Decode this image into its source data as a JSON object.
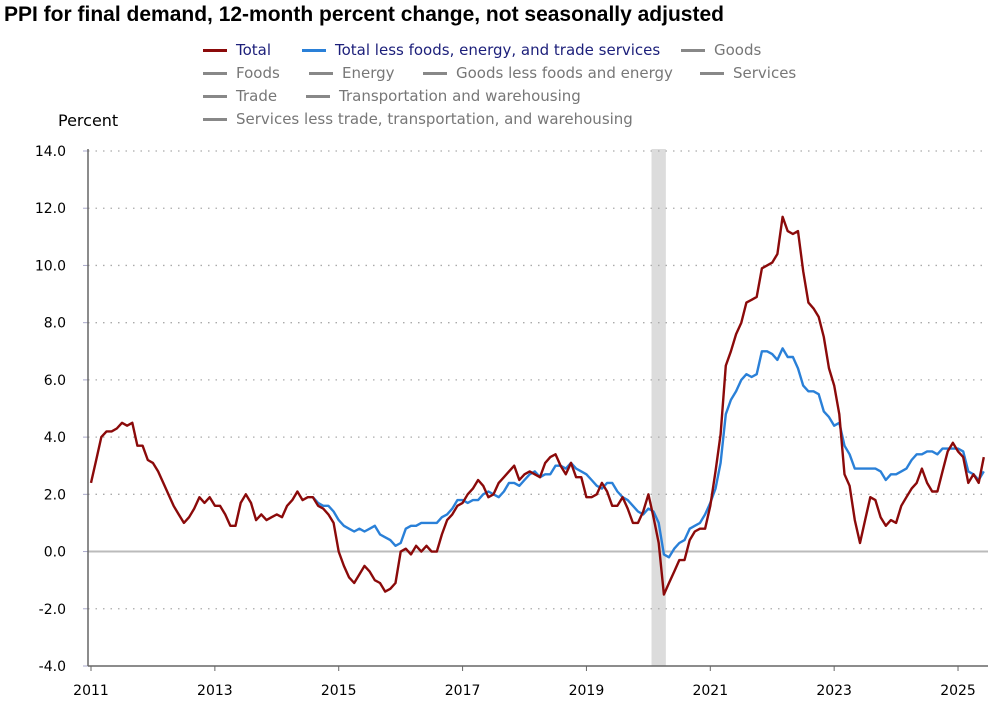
{
  "chart_data": {
    "type": "line",
    "title": "PPI for final demand, 12-month percent change, not seasonally adjusted",
    "ylabel": "Percent",
    "xlabel": "",
    "ylim": [
      -4.0,
      14.0
    ],
    "yticks": [
      "14.0",
      "12.0",
      "10.0",
      "8.0",
      "6.0",
      "4.0",
      "2.0",
      "0.0",
      "-2.0",
      "-4.0"
    ],
    "xticks": [
      "2011",
      "2013",
      "2015",
      "2017",
      "2019",
      "2021",
      "2023",
      "2025"
    ],
    "x_start": "2011-01",
    "x_end": "2025-06",
    "frequency": "monthly",
    "grid": "horizontal dotted",
    "shaded_period": [
      "2020-02",
      "2020-04"
    ],
    "legend": [
      {
        "label": "Total",
        "color": "#8b0a0a",
        "shown": true
      },
      {
        "label": "Total less foods, energy, and trade services",
        "color": "#2a80d8",
        "shown": true
      },
      {
        "label": "Goods",
        "color": "#888888",
        "shown": false
      },
      {
        "label": "Foods",
        "color": "#888888",
        "shown": false
      },
      {
        "label": "Energy",
        "color": "#888888",
        "shown": false
      },
      {
        "label": "Goods less foods and energy",
        "color": "#888888",
        "shown": false
      },
      {
        "label": "Services",
        "color": "#888888",
        "shown": false
      },
      {
        "label": "Trade",
        "color": "#888888",
        "shown": false
      },
      {
        "label": "Transportation and warehousing",
        "color": "#888888",
        "shown": false
      },
      {
        "label": "Services less trade, transportation, and warehousing",
        "color": "#888888",
        "shown": false
      }
    ],
    "series": [
      {
        "name": "Total",
        "color": "#8b0a0a",
        "start": "2011-01",
        "values": [
          2.4,
          3.2,
          4.0,
          4.2,
          4.2,
          4.3,
          4.5,
          4.4,
          4.5,
          3.7,
          3.7,
          3.2,
          3.1,
          2.8,
          2.4,
          2.0,
          1.6,
          1.3,
          1.0,
          1.2,
          1.5,
          1.9,
          1.7,
          1.9,
          1.6,
          1.6,
          1.3,
          0.9,
          0.9,
          1.7,
          2.0,
          1.7,
          1.1,
          1.3,
          1.1,
          1.2,
          1.3,
          1.2,
          1.6,
          1.8,
          2.1,
          1.8,
          1.9,
          1.9,
          1.6,
          1.5,
          1.3,
          1.0,
          0.0,
          -0.5,
          -0.9,
          -1.1,
          -0.8,
          -0.5,
          -0.7,
          -1.0,
          -1.1,
          -1.4,
          -1.3,
          -1.1,
          0.0,
          0.1,
          -0.1,
          0.2,
          0.0,
          0.2,
          0.0,
          0.0,
          0.6,
          1.1,
          1.3,
          1.6,
          1.7,
          2.0,
          2.2,
          2.5,
          2.3,
          1.9,
          2.0,
          2.4,
          2.6,
          2.8,
          3.0,
          2.5,
          2.7,
          2.8,
          2.7,
          2.6,
          3.1,
          3.3,
          3.4,
          3.0,
          2.7,
          3.1,
          2.6,
          2.6,
          1.9,
          1.9,
          2.0,
          2.4,
          2.1,
          1.6,
          1.6,
          1.9,
          1.5,
          1.0,
          1.0,
          1.4,
          2.0,
          1.2,
          0.3,
          -1.5,
          -1.1,
          -0.7,
          -0.3,
          -0.3,
          0.4,
          0.7,
          0.8,
          0.8,
          1.6,
          2.8,
          4.1,
          6.5,
          7.0,
          7.6,
          8.0,
          8.7,
          8.8,
          8.9,
          9.9,
          10.0,
          10.1,
          10.4,
          11.7,
          11.2,
          11.1,
          11.2,
          9.8,
          8.7,
          8.5,
          8.2,
          7.5,
          6.4,
          5.8,
          4.8,
          2.7,
          2.3,
          1.1,
          0.3,
          1.1,
          1.9,
          1.8,
          1.2,
          0.9,
          1.1,
          1.0,
          1.6,
          1.9,
          2.2,
          2.4,
          2.9,
          2.4,
          2.1,
          2.1,
          2.8,
          3.5,
          3.8,
          3.5,
          3.3,
          2.4,
          2.7,
          2.4,
          3.3
        ]
      },
      {
        "name": "Total less foods, energy, and trade services",
        "color": "#2a80d8",
        "start": "2014-08",
        "values": [
          1.9,
          1.7,
          1.6,
          1.6,
          1.4,
          1.1,
          0.9,
          0.8,
          0.7,
          0.8,
          0.7,
          0.8,
          0.9,
          0.6,
          0.5,
          0.4,
          0.2,
          0.3,
          0.8,
          0.9,
          0.9,
          1.0,
          1.0,
          1.0,
          1.0,
          1.2,
          1.3,
          1.5,
          1.8,
          1.8,
          1.7,
          1.8,
          1.8,
          2.0,
          2.1,
          2.0,
          1.9,
          2.1,
          2.4,
          2.4,
          2.3,
          2.5,
          2.7,
          2.8,
          2.6,
          2.7,
          2.7,
          3.0,
          3.0,
          2.9,
          3.1,
          2.9,
          2.8,
          2.7,
          2.5,
          2.3,
          2.2,
          2.4,
          2.4,
          2.1,
          1.9,
          1.8,
          1.6,
          1.4,
          1.3,
          1.5,
          1.4,
          1.0,
          -0.1,
          -0.2,
          0.1,
          0.3,
          0.4,
          0.8,
          0.9,
          1.0,
          1.3,
          1.7,
          2.2,
          3.1,
          4.8,
          5.3,
          5.6,
          6.0,
          6.2,
          6.1,
          6.2,
          7.0,
          7.0,
          6.9,
          6.7,
          7.1,
          6.8,
          6.8,
          6.4,
          5.8,
          5.6,
          5.6,
          5.5,
          4.9,
          4.7,
          4.4,
          4.5,
          3.7,
          3.4,
          2.9,
          2.9,
          2.9,
          2.9,
          2.9,
          2.8,
          2.5,
          2.7,
          2.7,
          2.8,
          2.9,
          3.2,
          3.4,
          3.4,
          3.5,
          3.5,
          3.4,
          3.6,
          3.6,
          3.6,
          3.6,
          3.5,
          2.8,
          2.7,
          2.5,
          2.8
        ]
      }
    ]
  }
}
